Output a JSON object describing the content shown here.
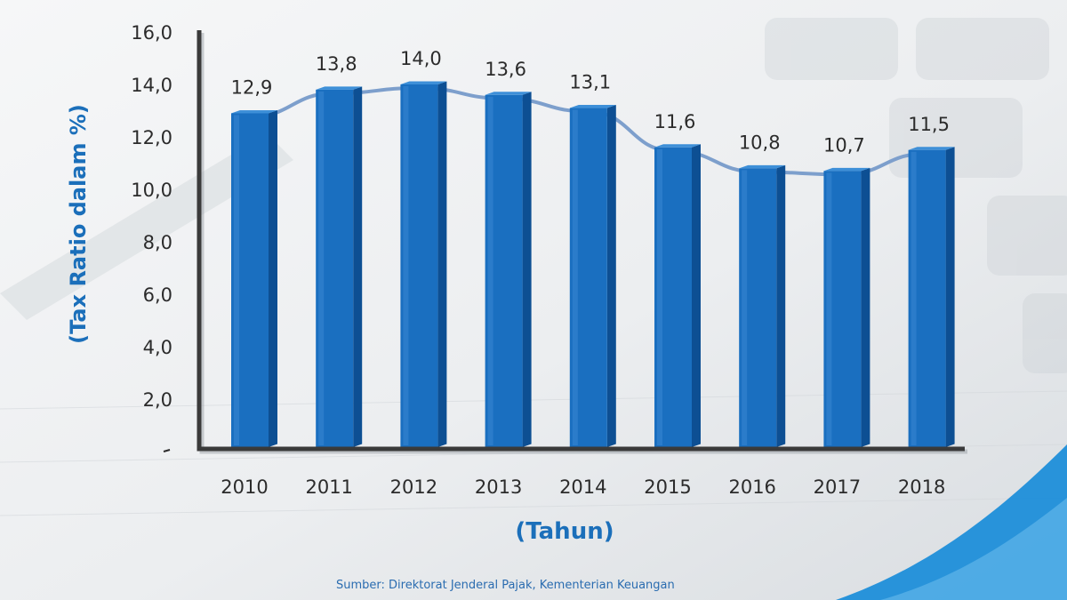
{
  "chart_data": {
    "type": "bar",
    "categories": [
      "2010",
      "2011",
      "2012",
      "2013",
      "2014",
      "2015",
      "2016",
      "2017",
      "2018"
    ],
    "values": [
      12.9,
      13.8,
      14.0,
      13.6,
      13.1,
      11.6,
      10.8,
      10.7,
      11.5
    ],
    "data_labels": [
      "12,9",
      "13,8",
      "14,0",
      "13,6",
      "13,1",
      "11,6",
      "10,8",
      "10,7",
      "11,5"
    ],
    "overlay_line": true,
    "ylim": [
      0,
      16
    ],
    "yticks": [
      2,
      4,
      6,
      8,
      10,
      12,
      14,
      16
    ],
    "ytick_labels": [
      "2,0",
      "4,0",
      "6,0",
      "8,0",
      "10,0",
      "12,0",
      "14,0",
      "16,0"
    ],
    "ylabel": "(Tax Ratio dalam %)",
    "xlabel": "(Tahun)",
    "source": "Sumber: Direktorat Jenderal Pajak, Kementerian Keuangan",
    "grid": false,
    "colors": {
      "bar_front": "#1a6fc0",
      "bar_side": "#0d4f93",
      "bar_top": "#3d8fd8",
      "line": "#7d9fcc",
      "axis": "#3a3a3a",
      "label_blue": "#1b6fba",
      "swoosh": "#1e8ed9"
    }
  }
}
